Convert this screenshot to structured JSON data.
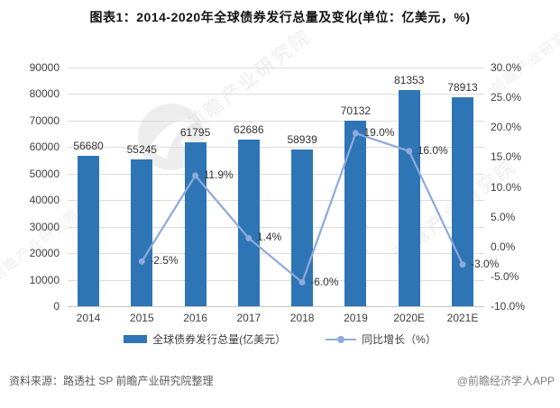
{
  "title": "图表1：2014-2020年全球债券发行总量及变化(单位：亿美元，%)",
  "watermark": {
    "text": "前瞻产业研究院",
    "logo_icon": "qianzhan-bird-logo"
  },
  "chart_data": {
    "type": "bar+line",
    "title": "图表1：2014-2020年全球债券发行总量及变化(单位：亿美元，%)",
    "categories": [
      "2014",
      "2015",
      "2016",
      "2017",
      "2018",
      "2019",
      "2020E",
      "2021E"
    ],
    "series": [
      {
        "name": "全球债券发行总量(亿美元）",
        "type": "bar",
        "axis": "left",
        "color": "#2E75B6",
        "values": [
          56680,
          55245,
          61795,
          62686,
          58939,
          70132,
          81353,
          78913
        ],
        "labels": [
          "56680",
          "55245",
          "61795",
          "62686",
          "58939",
          "70132",
          "81353",
          "78913"
        ]
      },
      {
        "name": "同比增长（%）",
        "type": "line",
        "axis": "right",
        "color": "#8FAADC",
        "values": [
          null,
          -2.5,
          11.9,
          1.4,
          -6.0,
          19.0,
          16.0,
          -3.0
        ],
        "labels": [
          null,
          "-2.5%",
          "11.9%",
          "1.4%",
          "-6.0%",
          "19.0%",
          "16.0%",
          "-3.0%"
        ]
      }
    ],
    "left_axis": {
      "min": 0,
      "max": 90000,
      "step": 10000,
      "tick_labels": [
        "90000",
        "80000",
        "70000",
        "60000",
        "50000",
        "40000",
        "30000",
        "20000",
        "10000",
        "0"
      ]
    },
    "right_axis": {
      "min": -10,
      "max": 30,
      "step": 5,
      "tick_labels": [
        "30.0%",
        "25.0%",
        "20.0%",
        "15.0%",
        "10.0%",
        "5.0%",
        "0.0%",
        "-5.0%",
        "-10.0%"
      ]
    },
    "grid": true,
    "legend_position": "bottom"
  },
  "legend": [
    {
      "label": "全球债券发行总量(亿美元）"
    },
    {
      "label": "同比增长（%）"
    }
  ],
  "footer": {
    "source": "资料来源：路透社 SP 前瞻产业研究院整理",
    "brand": "@前瞻经济学人APP"
  }
}
